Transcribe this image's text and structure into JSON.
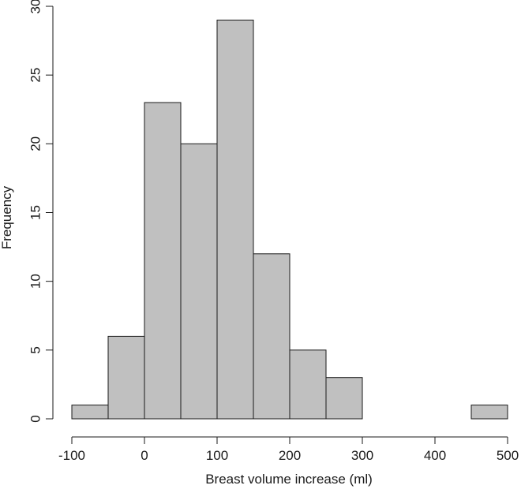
{
  "chart_data": {
    "type": "bar",
    "title": "",
    "xlabel": "Breast volume increase (ml)",
    "ylabel": "Frequency",
    "bins": [
      {
        "start": -100,
        "end": -50,
        "count": 1
      },
      {
        "start": -50,
        "end": 0,
        "count": 6
      },
      {
        "start": 0,
        "end": 50,
        "count": 23
      },
      {
        "start": 50,
        "end": 100,
        "count": 20
      },
      {
        "start": 100,
        "end": 150,
        "count": 29
      },
      {
        "start": 150,
        "end": 200,
        "count": 12
      },
      {
        "start": 200,
        "end": 250,
        "count": 5
      },
      {
        "start": 250,
        "end": 300,
        "count": 3
      },
      {
        "start": 300,
        "end": 350,
        "count": 0
      },
      {
        "start": 350,
        "end": 400,
        "count": 0
      },
      {
        "start": 400,
        "end": 450,
        "count": 0
      },
      {
        "start": 450,
        "end": 500,
        "count": 1
      }
    ],
    "xlim": [
      -100,
      500
    ],
    "ylim": [
      0,
      30
    ],
    "x_ticks": [
      "-100",
      "0",
      "100",
      "200",
      "300",
      "400",
      "500"
    ],
    "y_ticks": [
      "0",
      "5",
      "10",
      "15",
      "20",
      "25",
      "30"
    ],
    "grid": false,
    "bar_color": "#c0c0c0",
    "edge_color": "#1a1a1a"
  }
}
